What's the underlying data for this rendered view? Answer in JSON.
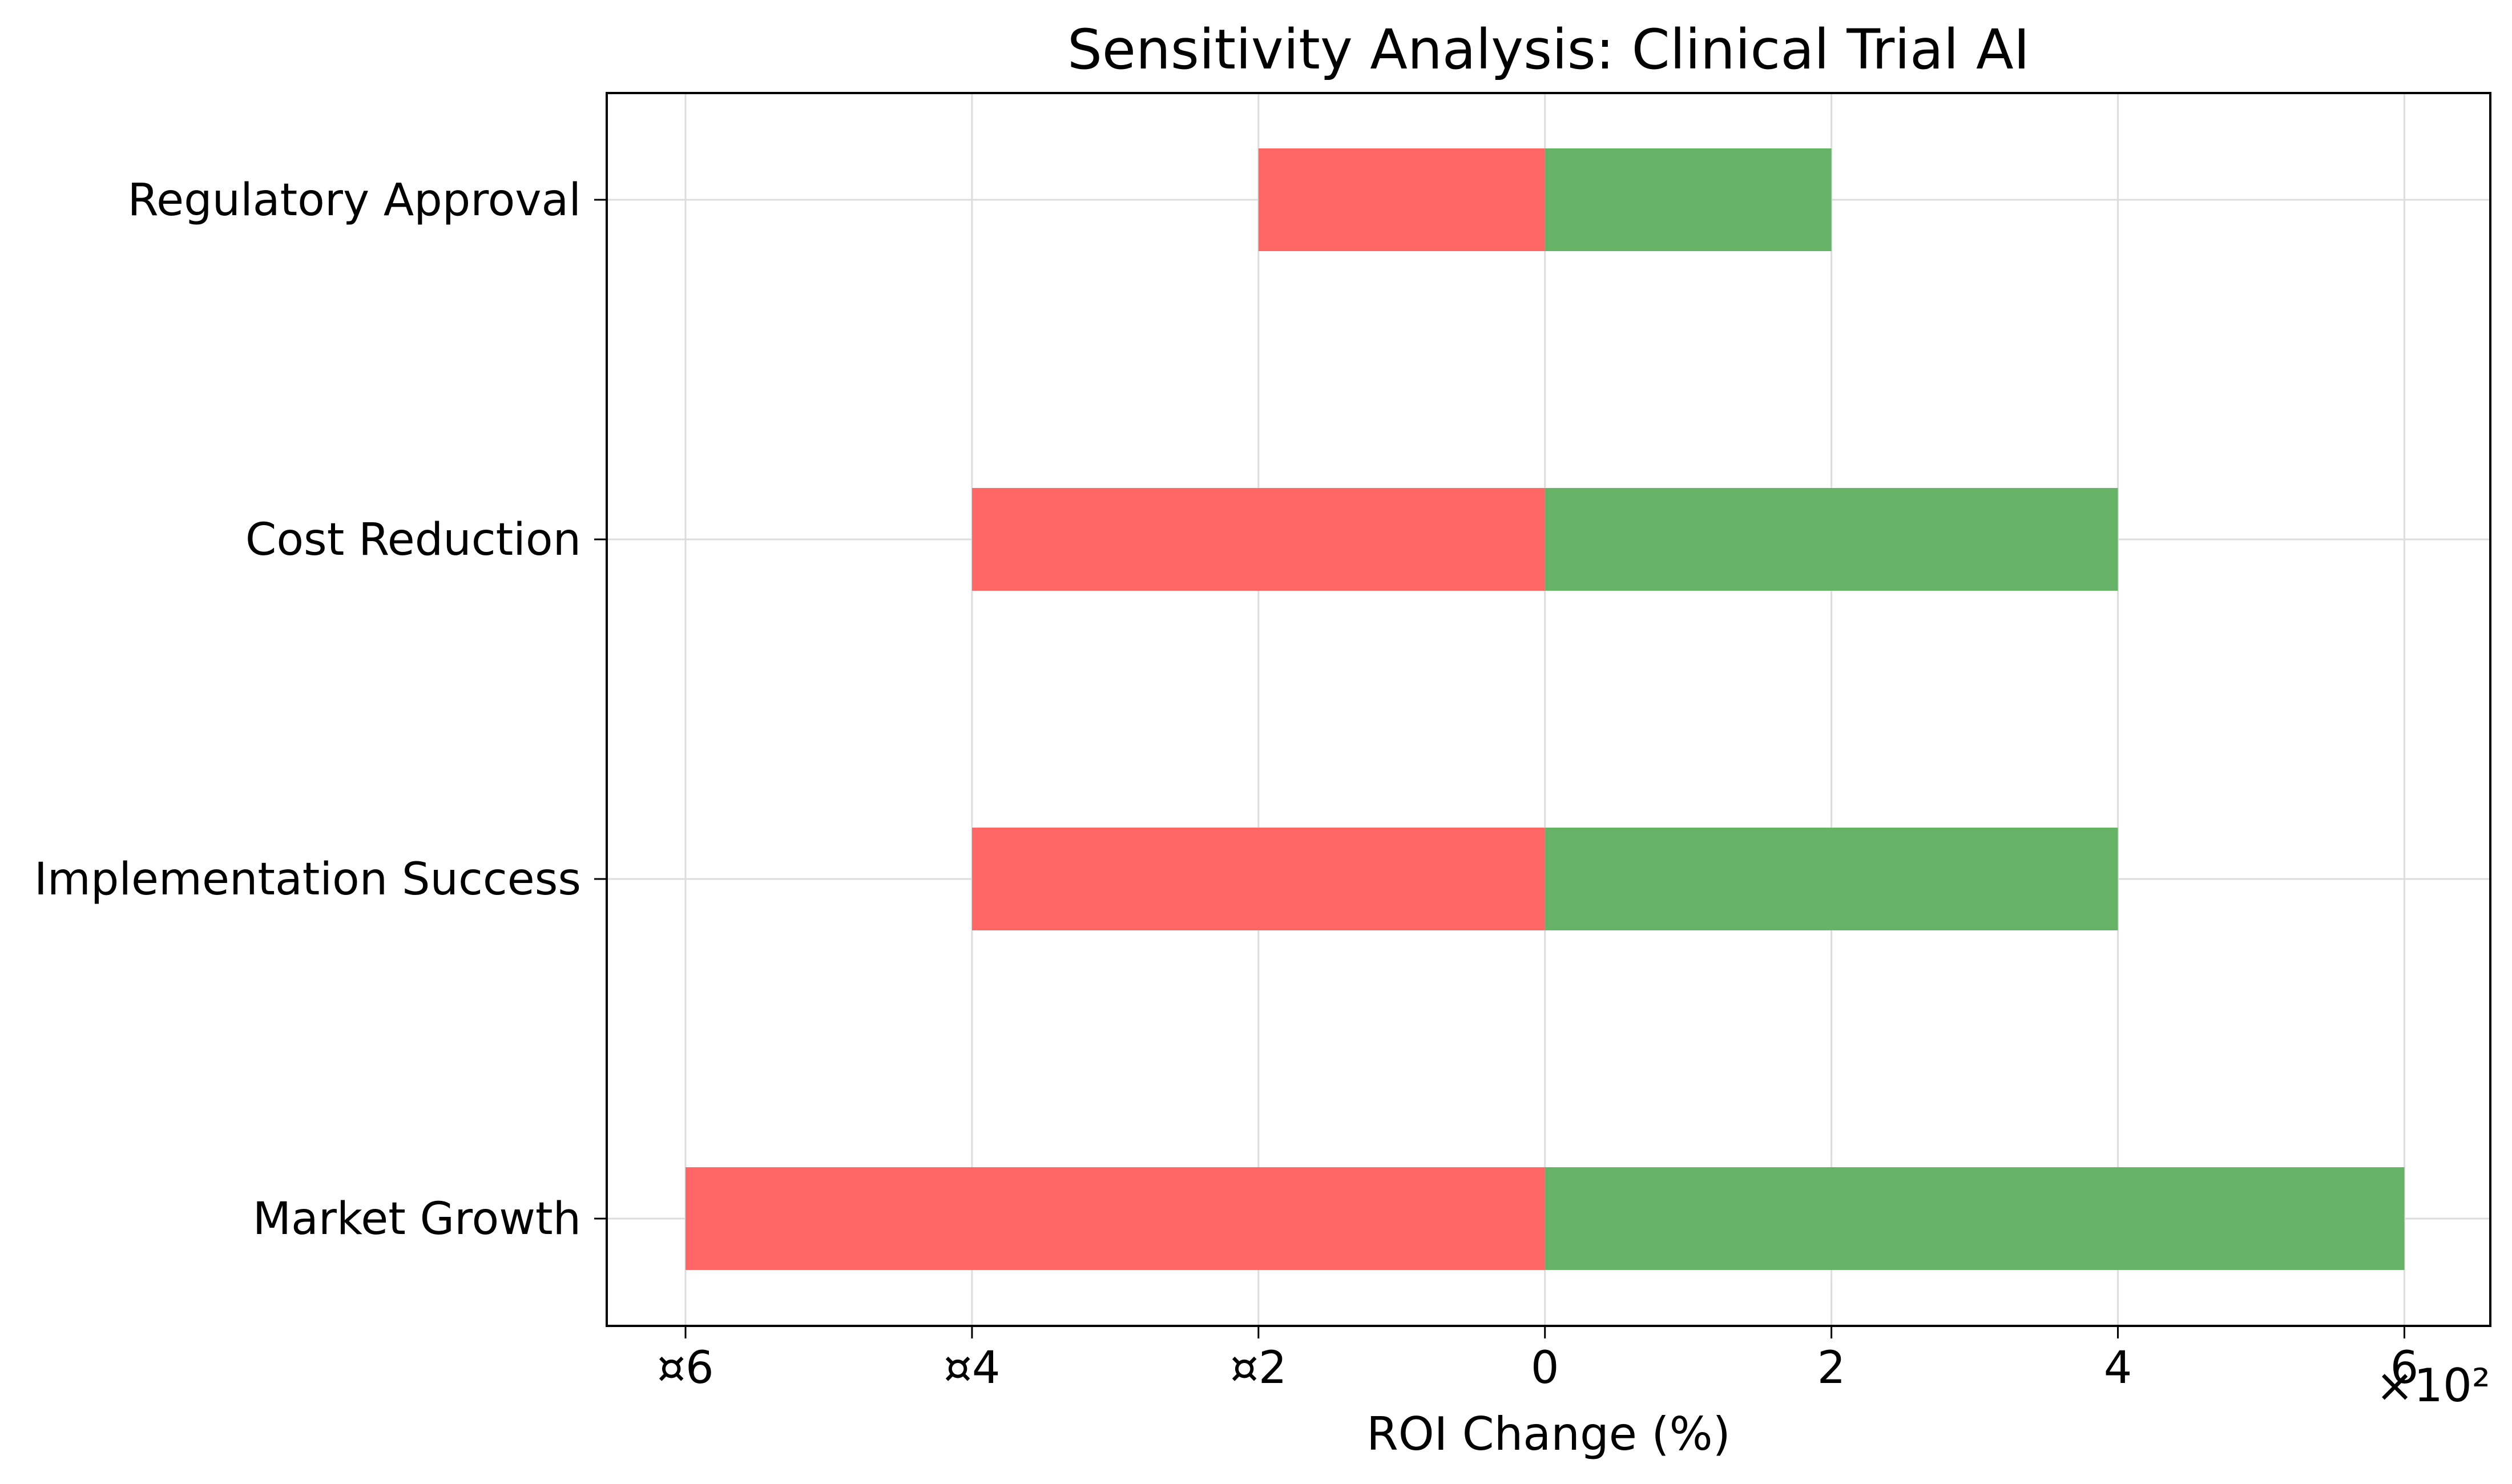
{
  "chart_data": {
    "type": "bar",
    "orientation": "horizontal",
    "title": "Sensitivity Analysis: Clinical Trial AI",
    "xlabel": "ROI Change (%)",
    "ylabel": "",
    "x_offset_text": "×10²",
    "xlim": [
      -6.55,
      6.6
    ],
    "x_ticks": [
      -6,
      -4,
      -2,
      0,
      2,
      4,
      6
    ],
    "x_tick_labels": [
      "¤6",
      "¤4",
      "¤2",
      "0",
      "2",
      "4",
      "6"
    ],
    "categories": [
      "Regulatory Approval",
      "Cost Reduction",
      "Implementation Success",
      "Market Growth"
    ],
    "series": [
      {
        "values": [
          -2,
          -4,
          -4,
          -6
        ],
        "color": "#ff6666"
      },
      {
        "values": [
          2,
          4,
          4,
          6
        ],
        "color": "#66b266"
      }
    ],
    "grid": true
  }
}
